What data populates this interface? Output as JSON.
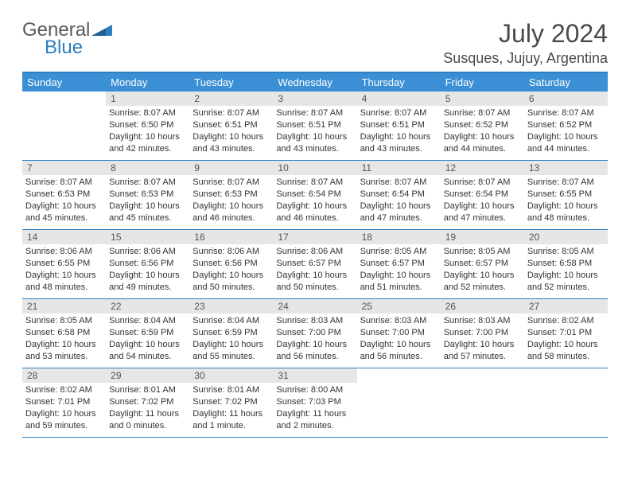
{
  "brand": {
    "part1": "General",
    "part2": "Blue"
  },
  "title": "July 2024",
  "location": "Susques, Jujuy, Argentina",
  "colors": {
    "header_bg": "#3b8fd4",
    "header_text": "#ffffff",
    "rule": "#2d7fc1",
    "daynum_bg": "#e6e6e6",
    "text": "#333333",
    "brand_gray": "#5a5a5a",
    "brand_blue": "#2d7fc1"
  },
  "weekdays": [
    "Sunday",
    "Monday",
    "Tuesday",
    "Wednesday",
    "Thursday",
    "Friday",
    "Saturday"
  ],
  "weeks": [
    [
      {
        "n": "",
        "sr": "",
        "ss": "",
        "dl": ""
      },
      {
        "n": "1",
        "sr": "Sunrise: 8:07 AM",
        "ss": "Sunset: 6:50 PM",
        "dl": "Daylight: 10 hours and 42 minutes."
      },
      {
        "n": "2",
        "sr": "Sunrise: 8:07 AM",
        "ss": "Sunset: 6:51 PM",
        "dl": "Daylight: 10 hours and 43 minutes."
      },
      {
        "n": "3",
        "sr": "Sunrise: 8:07 AM",
        "ss": "Sunset: 6:51 PM",
        "dl": "Daylight: 10 hours and 43 minutes."
      },
      {
        "n": "4",
        "sr": "Sunrise: 8:07 AM",
        "ss": "Sunset: 6:51 PM",
        "dl": "Daylight: 10 hours and 43 minutes."
      },
      {
        "n": "5",
        "sr": "Sunrise: 8:07 AM",
        "ss": "Sunset: 6:52 PM",
        "dl": "Daylight: 10 hours and 44 minutes."
      },
      {
        "n": "6",
        "sr": "Sunrise: 8:07 AM",
        "ss": "Sunset: 6:52 PM",
        "dl": "Daylight: 10 hours and 44 minutes."
      }
    ],
    [
      {
        "n": "7",
        "sr": "Sunrise: 8:07 AM",
        "ss": "Sunset: 6:53 PM",
        "dl": "Daylight: 10 hours and 45 minutes."
      },
      {
        "n": "8",
        "sr": "Sunrise: 8:07 AM",
        "ss": "Sunset: 6:53 PM",
        "dl": "Daylight: 10 hours and 45 minutes."
      },
      {
        "n": "9",
        "sr": "Sunrise: 8:07 AM",
        "ss": "Sunset: 6:53 PM",
        "dl": "Daylight: 10 hours and 46 minutes."
      },
      {
        "n": "10",
        "sr": "Sunrise: 8:07 AM",
        "ss": "Sunset: 6:54 PM",
        "dl": "Daylight: 10 hours and 46 minutes."
      },
      {
        "n": "11",
        "sr": "Sunrise: 8:07 AM",
        "ss": "Sunset: 6:54 PM",
        "dl": "Daylight: 10 hours and 47 minutes."
      },
      {
        "n": "12",
        "sr": "Sunrise: 8:07 AM",
        "ss": "Sunset: 6:54 PM",
        "dl": "Daylight: 10 hours and 47 minutes."
      },
      {
        "n": "13",
        "sr": "Sunrise: 8:07 AM",
        "ss": "Sunset: 6:55 PM",
        "dl": "Daylight: 10 hours and 48 minutes."
      }
    ],
    [
      {
        "n": "14",
        "sr": "Sunrise: 8:06 AM",
        "ss": "Sunset: 6:55 PM",
        "dl": "Daylight: 10 hours and 48 minutes."
      },
      {
        "n": "15",
        "sr": "Sunrise: 8:06 AM",
        "ss": "Sunset: 6:56 PM",
        "dl": "Daylight: 10 hours and 49 minutes."
      },
      {
        "n": "16",
        "sr": "Sunrise: 8:06 AM",
        "ss": "Sunset: 6:56 PM",
        "dl": "Daylight: 10 hours and 50 minutes."
      },
      {
        "n": "17",
        "sr": "Sunrise: 8:06 AM",
        "ss": "Sunset: 6:57 PM",
        "dl": "Daylight: 10 hours and 50 minutes."
      },
      {
        "n": "18",
        "sr": "Sunrise: 8:05 AM",
        "ss": "Sunset: 6:57 PM",
        "dl": "Daylight: 10 hours and 51 minutes."
      },
      {
        "n": "19",
        "sr": "Sunrise: 8:05 AM",
        "ss": "Sunset: 6:57 PM",
        "dl": "Daylight: 10 hours and 52 minutes."
      },
      {
        "n": "20",
        "sr": "Sunrise: 8:05 AM",
        "ss": "Sunset: 6:58 PM",
        "dl": "Daylight: 10 hours and 52 minutes."
      }
    ],
    [
      {
        "n": "21",
        "sr": "Sunrise: 8:05 AM",
        "ss": "Sunset: 6:58 PM",
        "dl": "Daylight: 10 hours and 53 minutes."
      },
      {
        "n": "22",
        "sr": "Sunrise: 8:04 AM",
        "ss": "Sunset: 6:59 PM",
        "dl": "Daylight: 10 hours and 54 minutes."
      },
      {
        "n": "23",
        "sr": "Sunrise: 8:04 AM",
        "ss": "Sunset: 6:59 PM",
        "dl": "Daylight: 10 hours and 55 minutes."
      },
      {
        "n": "24",
        "sr": "Sunrise: 8:03 AM",
        "ss": "Sunset: 7:00 PM",
        "dl": "Daylight: 10 hours and 56 minutes."
      },
      {
        "n": "25",
        "sr": "Sunrise: 8:03 AM",
        "ss": "Sunset: 7:00 PM",
        "dl": "Daylight: 10 hours and 56 minutes."
      },
      {
        "n": "26",
        "sr": "Sunrise: 8:03 AM",
        "ss": "Sunset: 7:00 PM",
        "dl": "Daylight: 10 hours and 57 minutes."
      },
      {
        "n": "27",
        "sr": "Sunrise: 8:02 AM",
        "ss": "Sunset: 7:01 PM",
        "dl": "Daylight: 10 hours and 58 minutes."
      }
    ],
    [
      {
        "n": "28",
        "sr": "Sunrise: 8:02 AM",
        "ss": "Sunset: 7:01 PM",
        "dl": "Daylight: 10 hours and 59 minutes."
      },
      {
        "n": "29",
        "sr": "Sunrise: 8:01 AM",
        "ss": "Sunset: 7:02 PM",
        "dl": "Daylight: 11 hours and 0 minutes."
      },
      {
        "n": "30",
        "sr": "Sunrise: 8:01 AM",
        "ss": "Sunset: 7:02 PM",
        "dl": "Daylight: 11 hours and 1 minute."
      },
      {
        "n": "31",
        "sr": "Sunrise: 8:00 AM",
        "ss": "Sunset: 7:03 PM",
        "dl": "Daylight: 11 hours and 2 minutes."
      },
      {
        "n": "",
        "sr": "",
        "ss": "",
        "dl": ""
      },
      {
        "n": "",
        "sr": "",
        "ss": "",
        "dl": ""
      },
      {
        "n": "",
        "sr": "",
        "ss": "",
        "dl": ""
      }
    ]
  ]
}
